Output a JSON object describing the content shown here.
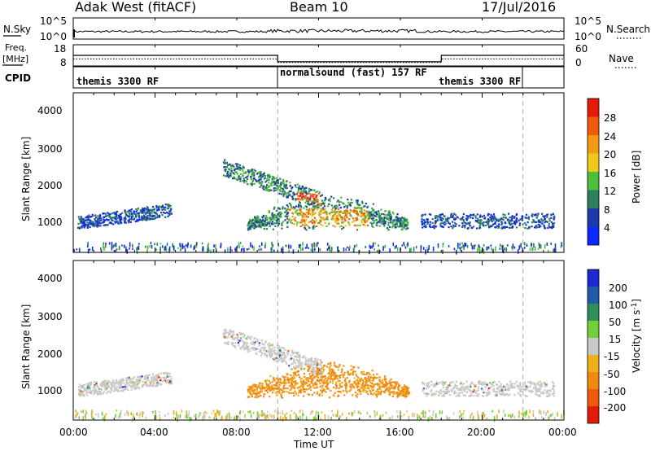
{
  "header": {
    "station": "Adak West (fitACF)",
    "beam": "Beam 10",
    "date": "17/Jul/2016"
  },
  "top_panel": {
    "left_label": "N.Sky",
    "left_ticks": [
      "10^5",
      "10^0"
    ],
    "right_ticks": [
      "10^5",
      "10^0"
    ],
    "right_label": "N.Search"
  },
  "freq_panel": {
    "left_label_1": "Freq.",
    "left_label_2": "[MHz]",
    "left_ticks": [
      "18",
      "8"
    ],
    "right_ticks": [
      "60",
      "0"
    ],
    "right_label": "Nave",
    "cpid_label": "CPID"
  },
  "cpid": {
    "segments": [
      {
        "label": "themis 3300 RF"
      },
      {
        "label": "normalsound (fast) 157 RF"
      },
      {
        "label": "themis 3300 RF"
      }
    ]
  },
  "power_panel": {
    "ylabel": "Slant Range [km]",
    "yticks": [
      "4000",
      "3000",
      "2000",
      "1000"
    ],
    "colorbar_label": "Power [dB]",
    "colorbar_ticks": [
      "28",
      "24",
      "20",
      "16",
      "12",
      "8",
      "4"
    ],
    "colors": [
      "#0b28ff",
      "#1e3aa8",
      "#2e7f5e",
      "#4cbf3a",
      "#f0c81e",
      "#f39a12",
      "#f15a0c",
      "#e51a0a"
    ]
  },
  "velocity_panel": {
    "ylabel": "Slant Range [km]",
    "yticks": [
      "4000",
      "3000",
      "2000",
      "1000"
    ],
    "colorbar_label": "Velocity [m s",
    "colorbar_label_sup": "-1",
    "colorbar_label_end": "]",
    "colorbar_ticks": [
      "200",
      "100",
      "50",
      "15",
      "-15",
      "-50",
      "-100",
      "-200"
    ],
    "colors": [
      "#1e28d0",
      "#1f5ca8",
      "#2e8f58",
      "#72cf38",
      "#c8c8c8",
      "#f0b01e",
      "#f08a12",
      "#f05a0c",
      "#e21a0a"
    ]
  },
  "x_axis": {
    "ticks": [
      "00:00",
      "04:00",
      "08:00",
      "12:00",
      "16:00",
      "20:00",
      "00:00"
    ],
    "label": "Time UT"
  },
  "chart_data": [
    {
      "type": "line",
      "title": "Adak West (fitACF)",
      "series": [
        {
          "name": "N.Sky"
        },
        {
          "name": "N.Search"
        }
      ],
      "x": [
        0,
        10,
        24
      ],
      "ylim_log": [
        0,
        5
      ]
    },
    {
      "type": "line",
      "series": [
        {
          "name": "Freq.",
          "x": [
            0,
            10,
            10,
            18,
            18,
            24
          ],
          "values": [
            13,
            13,
            10,
            10,
            13,
            13
          ]
        },
        {
          "name": "Nave",
          "x": [
            0,
            10,
            10,
            18,
            18,
            24
          ],
          "values": [
            20,
            20,
            10,
            10,
            20,
            20
          ]
        }
      ],
      "ylim_left": [
        8,
        18
      ],
      "ylim_right": [
        0,
        60
      ]
    },
    {
      "type": "heatmap",
      "ylabel": "Slant Range [km]",
      "xlabel": "Time UT",
      "xlim_hours": [
        0,
        24
      ],
      "ylim": [
        180,
        4500
      ],
      "colorbar": {
        "label": "Power [dB]",
        "range": [
          0,
          30
        ]
      },
      "regions": [
        {
          "t": [
            0.2,
            4.8
          ],
          "r": [
            900,
            1500
          ],
          "level": 8
        },
        {
          "t": [
            7.3,
            12.1
          ],
          "r": [
            1300,
            2700
          ],
          "level": 14
        },
        {
          "t": [
            8.5,
            16.4
          ],
          "r": [
            600,
            1700
          ],
          "level": 18
        },
        {
          "t": [
            17.0,
            23.5
          ],
          "r": [
            900,
            1400
          ],
          "level": 10
        }
      ]
    },
    {
      "type": "heatmap",
      "ylabel": "Slant Range [km]",
      "xlabel": "Time UT",
      "xlim_hours": [
        0,
        24
      ],
      "ylim": [
        180,
        4500
      ],
      "colorbar": {
        "range": [
          -200,
          200
        ]
      },
      "regions": [
        {
          "t": [
            0.2,
            4.8
          ],
          "r": [
            900,
            1500
          ],
          "velocity": 0
        },
        {
          "t": [
            7.3,
            12.1
          ],
          "r": [
            1300,
            2700
          ],
          "velocity": 0
        },
        {
          "t": [
            8.5,
            16.4
          ],
          "r": [
            600,
            1700
          ],
          "velocity": -60
        },
        {
          "t": [
            17.0,
            23.5
          ],
          "r": [
            900,
            1400
          ],
          "velocity": 0
        }
      ]
    }
  ]
}
